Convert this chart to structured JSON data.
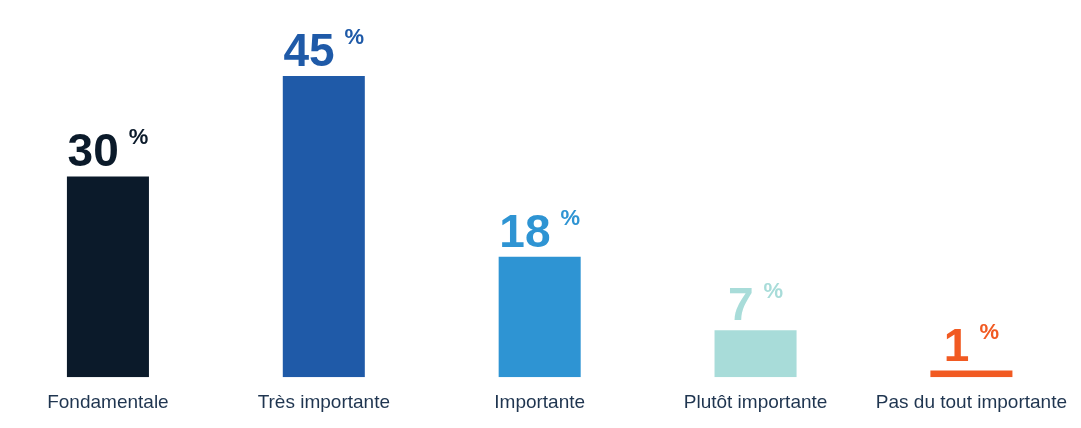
{
  "chart_data": {
    "type": "bar",
    "categories": [
      "Fondamentale",
      "Très importante",
      "Importante",
      "Plutôt importante",
      "Pas du tout importante"
    ],
    "values": [
      30,
      45,
      18,
      7,
      1
    ],
    "colors": [
      "#0b1a2a",
      "#1f5aa8",
      "#2e94d3",
      "#a8dcd9",
      "#f15a22"
    ],
    "value_labels": [
      "30 %",
      "45 %",
      "18 %",
      "7 %",
      "1 %"
    ],
    "grid": false,
    "legend": false
  }
}
